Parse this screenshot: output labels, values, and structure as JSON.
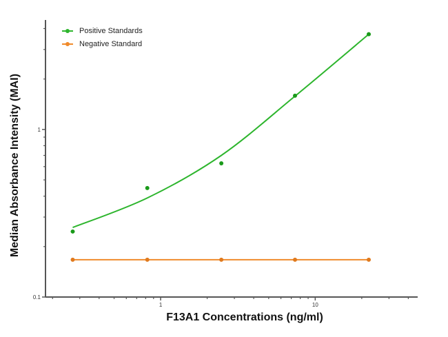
{
  "chart_data": {
    "type": "scatter",
    "title": "",
    "xlabel": "F13A1 Concentrations (ng/ml)",
    "ylabel": "Median Absorbance Intensity (MAI)",
    "xscale": "log",
    "yscale": "log",
    "xlim": [
      0.18,
      46
    ],
    "ylim": [
      0.1,
      4.5
    ],
    "x_ticks": [
      {
        "value": 1,
        "label": "1"
      },
      {
        "value": 10,
        "label": "10"
      }
    ],
    "y_ticks": [
      {
        "value": 0.1,
        "label": "0.1"
      },
      {
        "value": 1,
        "label": "1"
      }
    ],
    "grid": false,
    "legend_position": "upper left",
    "series": [
      {
        "name": "Positive Standards",
        "color": "#2db52d",
        "marker": "circle",
        "fit": "smooth curve",
        "x": [
          0.27,
          0.82,
          2.47,
          7.4,
          22.2
        ],
        "y": [
          0.246,
          0.447,
          0.628,
          1.59,
          3.7
        ],
        "fit_y": [
          0.26,
          0.39,
          0.7,
          1.58,
          3.7
        ]
      },
      {
        "name": "Negative Standard",
        "color": "#f08a2a",
        "marker": "circle",
        "fit": "line",
        "x": [
          0.27,
          0.82,
          2.47,
          7.4,
          22.2
        ],
        "y": [
          0.167,
          0.167,
          0.167,
          0.167,
          0.167
        ]
      }
    ]
  },
  "legend": {
    "items": [
      {
        "label": "Positive Standards",
        "color": "#2db52d"
      },
      {
        "label": "Negative Standard",
        "color": "#f08a2a"
      }
    ]
  }
}
